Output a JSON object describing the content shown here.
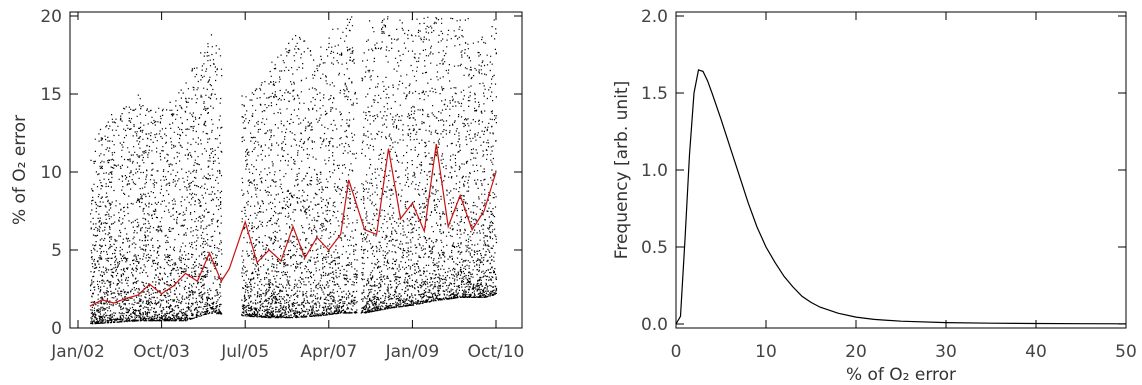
{
  "chart_data": [
    {
      "type": "scatter",
      "title": "",
      "xlabel": "",
      "ylabel": "% of O₂ error",
      "ylim": [
        0,
        20
      ],
      "x_tick_labels": [
        "Jan/02",
        "Oct/03",
        "Jul/05",
        "Apr/07",
        "Jan/09",
        "Oct/10"
      ],
      "y_tick_labels": [
        "0",
        "5",
        "10",
        "15",
        "20"
      ],
      "grid": false,
      "legend": "none",
      "series": [
        {
          "kind": "scatter",
          "color": "#000000",
          "envelope": [
            {
              "x": "2002-04",
              "lo": 0.3,
              "hi": 12
            },
            {
              "x": "2002-10",
              "lo": 0.4,
              "hi": 14
            },
            {
              "x": "2003-04",
              "lo": 0.5,
              "hi": 15
            },
            {
              "x": "2003-10",
              "lo": 0.5,
              "hi": 14
            },
            {
              "x": "2004-04",
              "lo": 0.5,
              "hi": 16
            },
            {
              "x": "2004-10",
              "lo": 1.0,
              "hi": 19
            },
            {
              "x": "2005-07",
              "lo": 0.8,
              "hi": 15
            },
            {
              "x": "2006-01",
              "lo": 0.7,
              "hi": 17
            },
            {
              "x": "2006-07",
              "lo": 0.7,
              "hi": 19
            },
            {
              "x": "2007-01",
              "lo": 0.8,
              "hi": 18
            },
            {
              "x": "2007-07",
              "lo": 1.0,
              "hi": 20
            },
            {
              "x": "2008-01",
              "lo": 1.0,
              "hi": 20
            },
            {
              "x": "2008-07",
              "lo": 1.3,
              "hi": 20
            },
            {
              "x": "2009-01",
              "lo": 1.5,
              "hi": 20
            },
            {
              "x": "2009-07",
              "lo": 1.8,
              "hi": 20
            },
            {
              "x": "2010-01",
              "lo": 2.0,
              "hi": 20
            },
            {
              "x": "2010-07",
              "lo": 2.0,
              "hi": 20
            },
            {
              "x": "2010-10",
              "lo": 2.2,
              "hi": 20
            }
          ],
          "gaps": [
            [
              "2005-01",
              "2005-06"
            ],
            [
              "2007-11",
              "2007-12"
            ]
          ]
        },
        {
          "kind": "line",
          "color": "#cc1111",
          "points": [
            [
              "2002-04",
              1.4
            ],
            [
              "2002-07",
              1.8
            ],
            [
              "2002-10",
              1.6
            ],
            [
              "2003-01",
              1.9
            ],
            [
              "2003-04",
              2.1
            ],
            [
              "2003-07",
              2.8
            ],
            [
              "2003-10",
              2.2
            ],
            [
              "2004-01",
              2.7
            ],
            [
              "2004-04",
              3.5
            ],
            [
              "2004-07",
              3.0
            ],
            [
              "2004-10",
              4.8
            ],
            [
              "2005-01",
              3.0
            ],
            [
              "2005-03",
              3.8
            ],
            [
              "2005-07",
              6.8
            ],
            [
              "2005-10",
              4.2
            ],
            [
              "2006-01",
              5.0
            ],
            [
              "2006-04",
              4.3
            ],
            [
              "2006-07",
              6.5
            ],
            [
              "2006-10",
              4.5
            ],
            [
              "2007-01",
              5.8
            ],
            [
              "2007-04",
              5.0
            ],
            [
              "2007-07",
              6.0
            ],
            [
              "2007-09",
              9.5
            ],
            [
              "2008-01",
              6.3
            ],
            [
              "2008-04",
              6.0
            ],
            [
              "2008-07",
              11.5
            ],
            [
              "2008-10",
              7.0
            ],
            [
              "2009-01",
              8.0
            ],
            [
              "2009-04",
              6.2
            ],
            [
              "2009-07",
              11.8
            ],
            [
              "2009-10",
              6.5
            ],
            [
              "2010-01",
              8.5
            ],
            [
              "2010-04",
              6.3
            ],
            [
              "2010-07",
              7.5
            ],
            [
              "2010-10",
              10.0
            ]
          ]
        }
      ]
    },
    {
      "type": "line",
      "title": "",
      "xlabel": "% of O₂ error",
      "ylabel": "Frequency [arb. unit]",
      "xlim": [
        0,
        50
      ],
      "ylim": [
        0,
        2.0
      ],
      "x_tick_labels": [
        "0",
        "10",
        "20",
        "30",
        "40",
        "50"
      ],
      "y_tick_labels": [
        "0.0",
        "0.5",
        "1.0",
        "1.5",
        "2.0"
      ],
      "grid": false,
      "legend": "none",
      "series": [
        {
          "color": "#000000",
          "points": [
            [
              0.0,
              0.0
            ],
            [
              0.5,
              0.05
            ],
            [
              1.0,
              0.55
            ],
            [
              1.5,
              1.1
            ],
            [
              2.0,
              1.5
            ],
            [
              2.5,
              1.65
            ],
            [
              3.0,
              1.64
            ],
            [
              3.5,
              1.58
            ],
            [
              4.0,
              1.5
            ],
            [
              5.0,
              1.33
            ],
            [
              6.0,
              1.15
            ],
            [
              7.0,
              0.97
            ],
            [
              8.0,
              0.79
            ],
            [
              9.0,
              0.63
            ],
            [
              10.0,
              0.5
            ],
            [
              11.0,
              0.4
            ],
            [
              12.0,
              0.31
            ],
            [
              13.0,
              0.24
            ],
            [
              14.0,
              0.18
            ],
            [
              15.0,
              0.14
            ],
            [
              16.0,
              0.11
            ],
            [
              18.0,
              0.07
            ],
            [
              20.0,
              0.045
            ],
            [
              22.0,
              0.03
            ],
            [
              25.0,
              0.018
            ],
            [
              30.0,
              0.009
            ],
            [
              35.0,
              0.005
            ],
            [
              40.0,
              0.003
            ],
            [
              45.0,
              0.002
            ],
            [
              50.0,
              0.001
            ]
          ]
        }
      ]
    }
  ]
}
